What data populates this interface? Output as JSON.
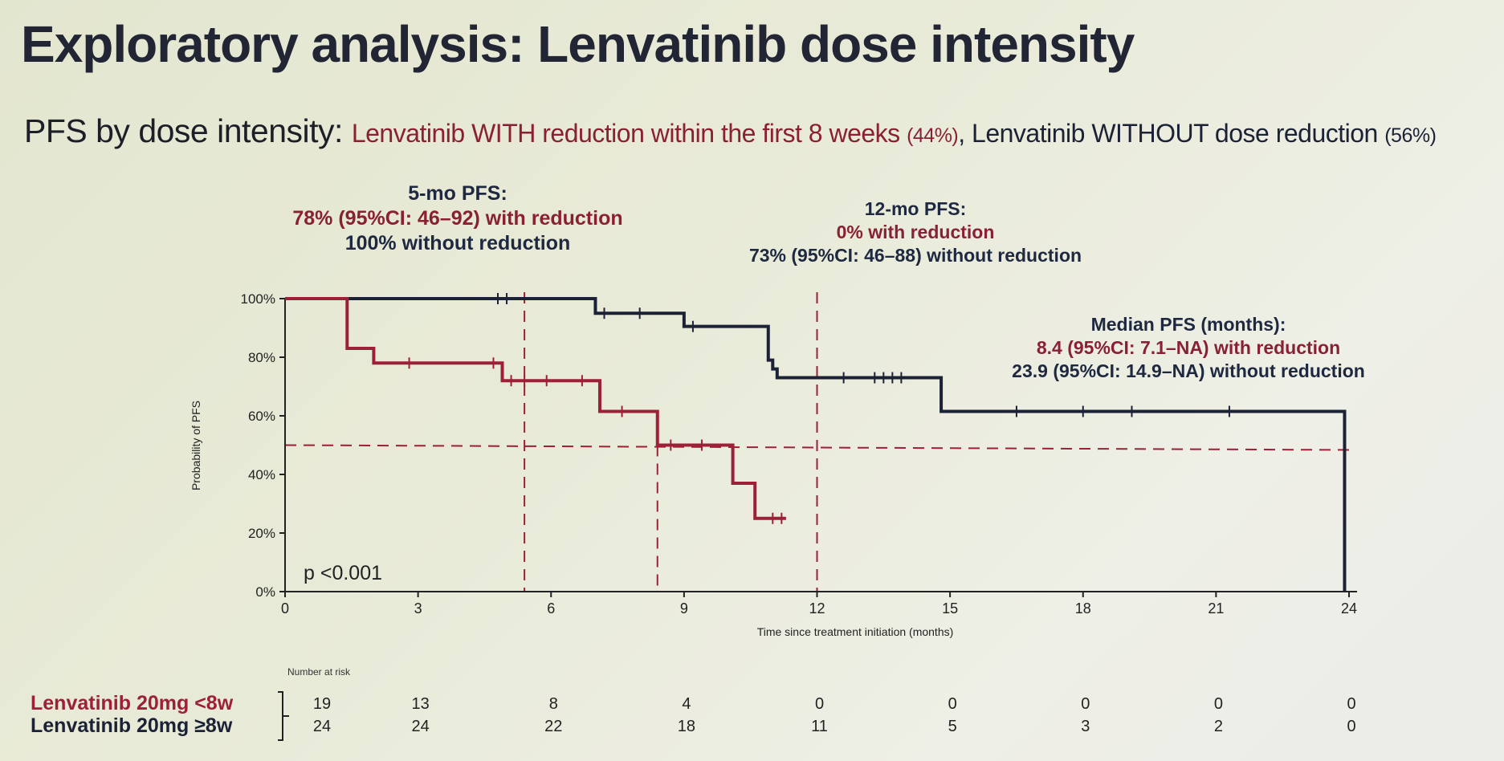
{
  "title": "Exploratory analysis: Lenvatinib dose intensity",
  "subtitle": {
    "lead": "PFS by dose intensity: ",
    "with_text": "Lenvatinib WITH reduction within the first 8 weeks ",
    "with_pct": "(44%)",
    "sep": ", ",
    "without_text": "Lenvatinib WITHOUT dose reduction ",
    "without_pct": "(56%)"
  },
  "annotations": {
    "pfs5": {
      "head": "5-mo PFS:",
      "with": "78% (95%CI: 46–92) with reduction",
      "without": "100% without reduction"
    },
    "pfs12": {
      "head": "12-mo PFS:",
      "with": "0% with reduction",
      "without": "73% (95%CI: 46–88) without reduction"
    },
    "median": {
      "head": "Median PFS (months):",
      "with": "8.4 (95%CI: 7.1–NA) with reduction",
      "without": "23.9 (95%CI: 14.9–NA) without reduction"
    }
  },
  "colors": {
    "with_reduction": "#9b2038",
    "without_reduction": "#1c2236",
    "axis": "#222222"
  },
  "chart_data": {
    "type": "line",
    "subtype": "kaplan-meier",
    "xlabel": "Time since treatment initiation (months)",
    "ylabel": "Probability of PFS",
    "xlim": [
      0,
      24
    ],
    "ylim": [
      0,
      100
    ],
    "x_ticks": [
      0,
      3,
      6,
      9,
      12,
      15,
      18,
      21,
      24
    ],
    "x_tick_labels": [
      "0",
      "3",
      "6",
      "9",
      "12",
      "15",
      "18",
      "21",
      "24"
    ],
    "y_ticks": [
      0,
      20,
      40,
      60,
      80,
      100
    ],
    "y_tick_labels": [
      "0%",
      "20%",
      "40%",
      "60%",
      "80%",
      "100%"
    ],
    "p_value": "p <0.001",
    "reference_lines": {
      "horizontal_y": 50,
      "vertical_x": [
        5.4,
        8.4,
        12
      ]
    },
    "series": [
      {
        "key": "without",
        "color": "#1c2236",
        "steps": [
          [
            0,
            100
          ],
          [
            7,
            100
          ],
          [
            7,
            95
          ],
          [
            9,
            95
          ],
          [
            9,
            90.5
          ],
          [
            10.9,
            90.5
          ],
          [
            10.9,
            79
          ],
          [
            11,
            79
          ],
          [
            11,
            76
          ],
          [
            11.1,
            76
          ],
          [
            11.1,
            73
          ],
          [
            14.8,
            73
          ],
          [
            14.8,
            61.5
          ],
          [
            23.9,
            61.5
          ],
          [
            23.9,
            0
          ]
        ],
        "censors": [
          [
            4.8,
            100
          ],
          [
            5.0,
            100
          ],
          [
            7.2,
            95
          ],
          [
            8.0,
            95
          ],
          [
            9.2,
            90.5
          ],
          [
            12.6,
            73
          ],
          [
            13.3,
            73
          ],
          [
            13.5,
            73
          ],
          [
            13.7,
            73
          ],
          [
            13.9,
            73
          ],
          [
            16.5,
            61.5
          ],
          [
            18.0,
            61.5
          ],
          [
            19.1,
            61.5
          ],
          [
            21.3,
            61.5
          ]
        ]
      },
      {
        "key": "with",
        "color": "#9b2038",
        "steps": [
          [
            0,
            100
          ],
          [
            1.4,
            100
          ],
          [
            1.4,
            83
          ],
          [
            2.0,
            83
          ],
          [
            2.0,
            78
          ],
          [
            4.9,
            78
          ],
          [
            4.9,
            72
          ],
          [
            7.1,
            72
          ],
          [
            7.1,
            61.5
          ],
          [
            8.4,
            61.5
          ],
          [
            8.4,
            50
          ],
          [
            10.1,
            50
          ],
          [
            10.1,
            37
          ],
          [
            10.6,
            37
          ],
          [
            10.6,
            25
          ],
          [
            11.3,
            25
          ]
        ],
        "censors": [
          [
            2.8,
            78
          ],
          [
            4.7,
            78
          ],
          [
            5.1,
            72
          ],
          [
            5.4,
            72
          ],
          [
            5.9,
            72
          ],
          [
            6.7,
            72
          ],
          [
            7.6,
            61.5
          ],
          [
            8.7,
            50
          ],
          [
            9.4,
            50
          ],
          [
            11.0,
            25
          ],
          [
            11.2,
            25
          ]
        ]
      }
    ]
  },
  "risk_table": {
    "header": "Number at risk",
    "times": [
      0,
      3,
      6,
      9,
      12,
      15,
      18,
      21,
      24
    ],
    "rows": [
      {
        "label": "Lenvatinib 20mg <8w",
        "color": "#9b2038",
        "values": [
          "19",
          "13",
          "8",
          "4",
          "0",
          "0",
          "0",
          "0",
          "0"
        ]
      },
      {
        "label": "Lenvatinib 20mg ≥8w",
        "color": "#1c2236",
        "values": [
          "24",
          "24",
          "22",
          "18",
          "11",
          "5",
          "3",
          "2",
          "0"
        ]
      }
    ]
  }
}
